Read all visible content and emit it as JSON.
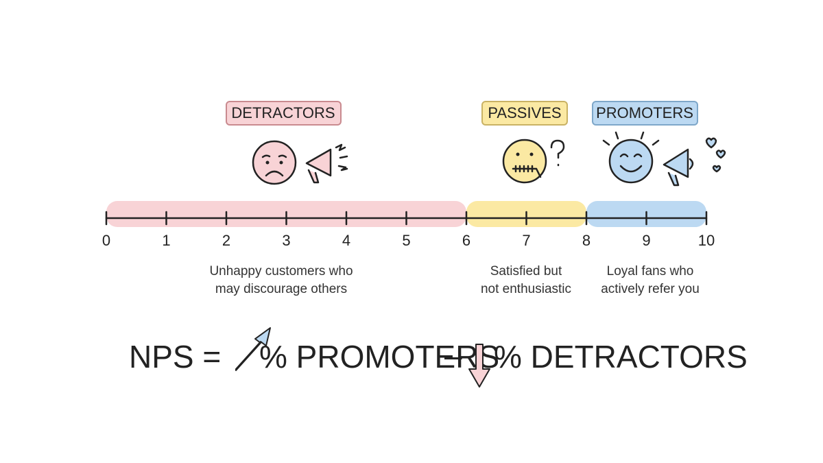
{
  "segments": [
    {
      "label": "DETRACTORS",
      "description": [
        "Unhappy customers who",
        "may discourage others"
      ]
    },
    {
      "label": "PASSIVES",
      "description": [
        "Satisfied but",
        "not enthusiastic"
      ]
    },
    {
      "label": "PROMOTERS",
      "description": [
        "Loyal fans who",
        "actively refer you"
      ]
    }
  ],
  "scale": {
    "ticks": [
      0,
      1,
      2,
      3,
      4,
      5,
      6,
      7,
      8,
      9,
      10
    ]
  },
  "formula": {
    "left": "NPS =",
    "plus_term": "% PROMOTERS",
    "operator": "–",
    "minus_term": "% DETRACTORS"
  }
}
